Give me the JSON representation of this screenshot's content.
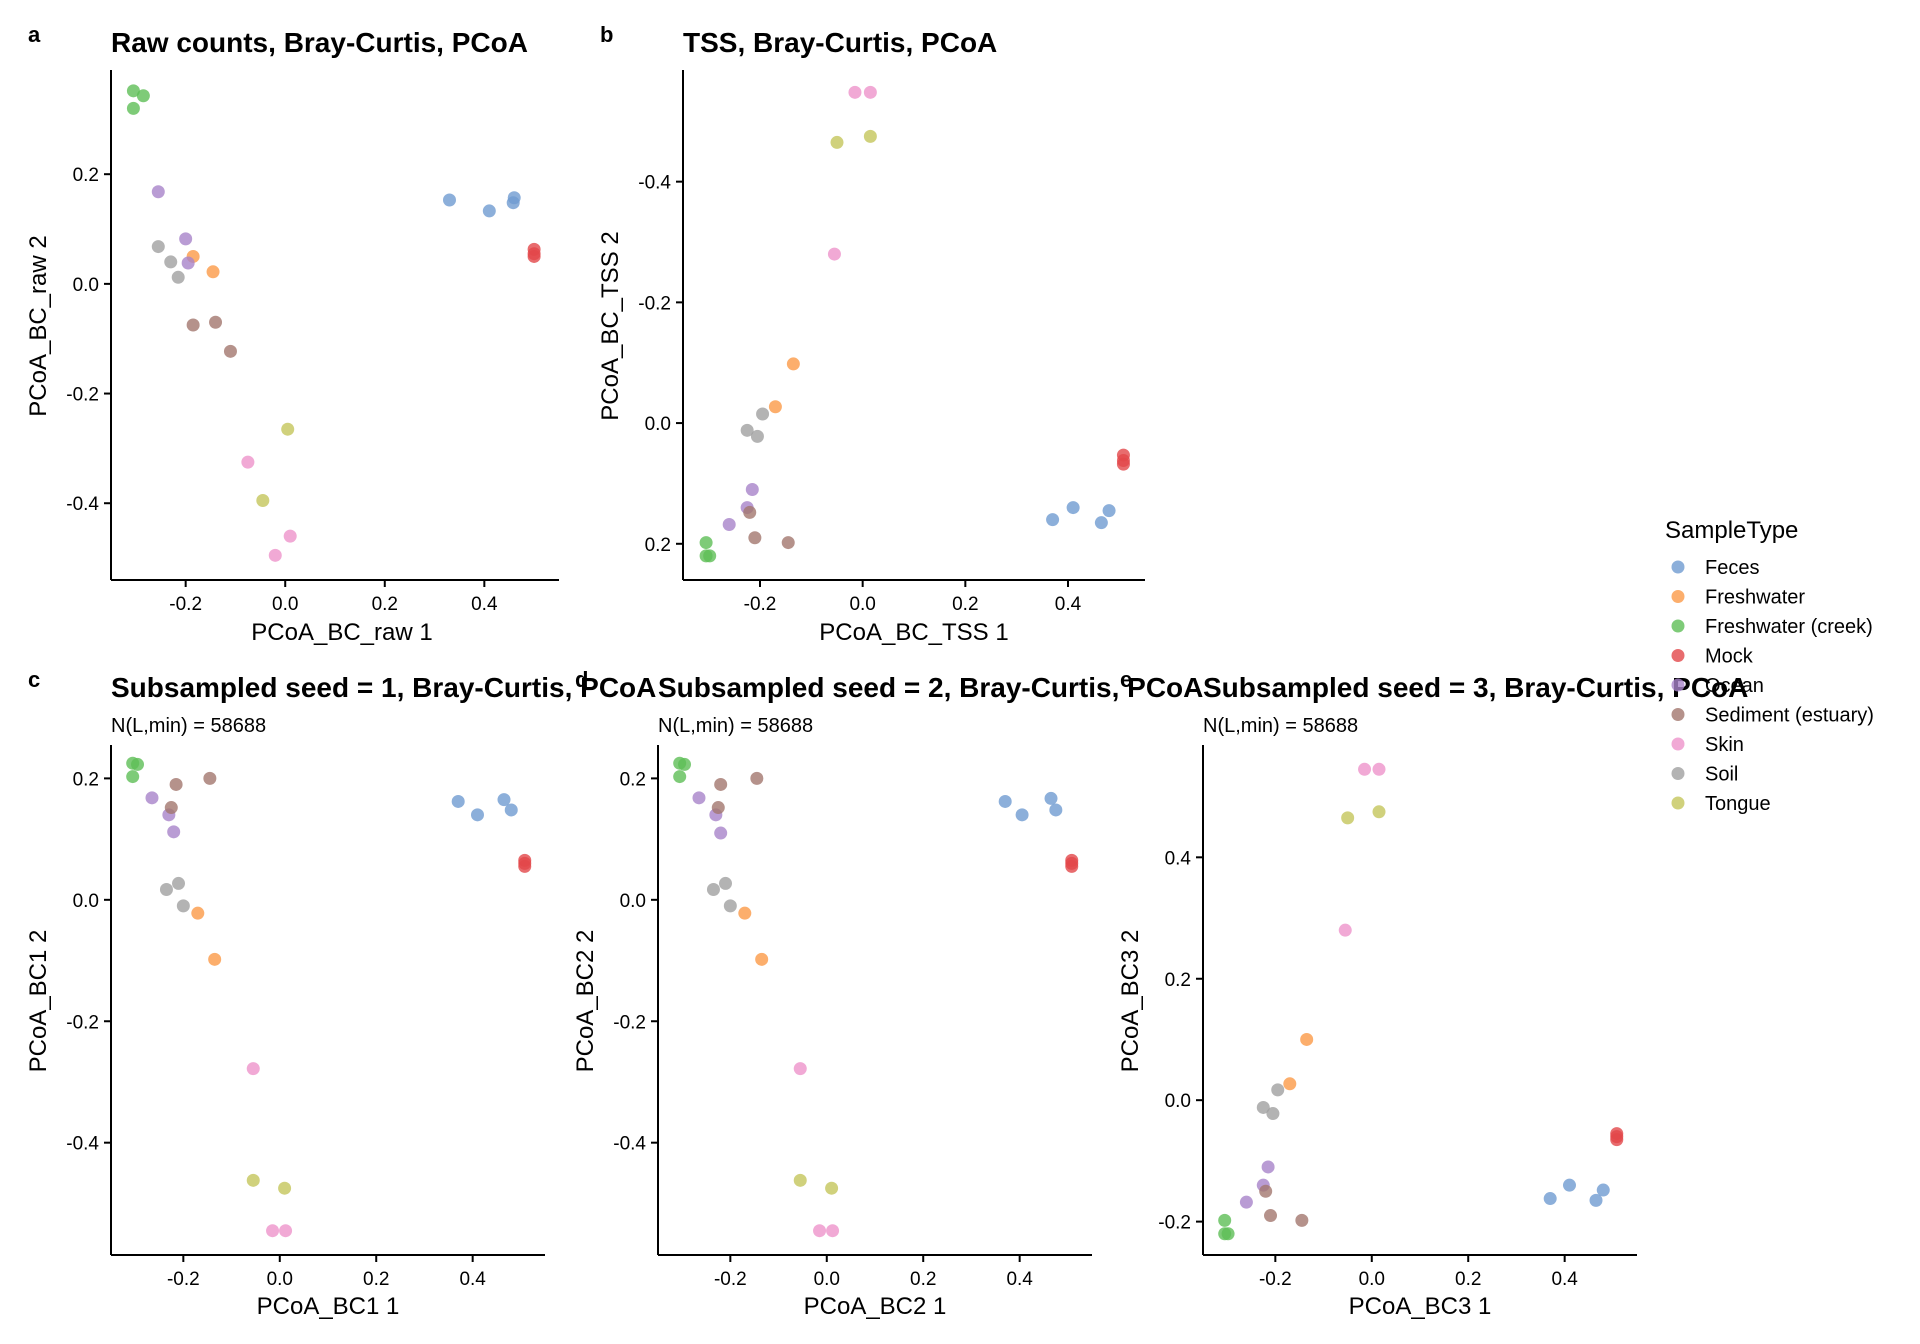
{
  "legend": {
    "title": "SampleType",
    "entries": [
      {
        "name": "Feces",
        "color": "#6F9BD1"
      },
      {
        "name": "Freshwater",
        "color": "#FB9A47"
      },
      {
        "name": "Freshwater (creek)",
        "color": "#5EBE56"
      },
      {
        "name": "Mock",
        "color": "#E2474A"
      },
      {
        "name": "Ocean",
        "color": "#A783C9"
      },
      {
        "name": "Sediment (estuary)",
        "color": "#A2776E"
      },
      {
        "name": "Skin",
        "color": "#EE93CB"
      },
      {
        "name": "Soil",
        "color": "#A0A0A0"
      },
      {
        "name": "Tongue",
        "color": "#C4C65B"
      }
    ]
  },
  "chart_data": [
    {
      "type": "scatter",
      "panel": "a",
      "title": "Raw counts, Bray-Curtis, PCoA",
      "subtitle": "",
      "xlabel": "PCoA_BC_raw 1",
      "ylabel": "PCoA_BC_raw 2",
      "xlim": [
        -0.35,
        0.55
      ],
      "ylim": [
        -0.54,
        0.39
      ],
      "y_reversed": false,
      "xticks": [
        -0.2,
        0.0,
        0.2,
        0.4
      ],
      "xtick_labels": [
        "-0.2",
        "0.0",
        "0.2",
        "0.4"
      ],
      "yticks": [
        0.2,
        0.0,
        -0.2,
        -0.4
      ],
      "ytick_labels": [
        "0.2",
        "0.0",
        "-0.2",
        "-0.4"
      ],
      "points": [
        {
          "group": "Feces",
          "x": 0.33,
          "y": 0.153
        },
        {
          "group": "Feces",
          "x": 0.41,
          "y": 0.133
        },
        {
          "group": "Feces",
          "x": 0.458,
          "y": 0.148
        },
        {
          "group": "Feces",
          "x": 0.46,
          "y": 0.157
        },
        {
          "group": "Freshwater",
          "x": -0.185,
          "y": 0.05
        },
        {
          "group": "Freshwater",
          "x": -0.145,
          "y": 0.022
        },
        {
          "group": "Freshwater (creek)",
          "x": -0.305,
          "y": 0.352
        },
        {
          "group": "Freshwater (creek)",
          "x": -0.285,
          "y": 0.343
        },
        {
          "group": "Freshwater (creek)",
          "x": -0.305,
          "y": 0.32
        },
        {
          "group": "Mock",
          "x": 0.5,
          "y": 0.063
        },
        {
          "group": "Mock",
          "x": 0.5,
          "y": 0.055
        },
        {
          "group": "Mock",
          "x": 0.5,
          "y": 0.05
        },
        {
          "group": "Ocean",
          "x": -0.255,
          "y": 0.168
        },
        {
          "group": "Ocean",
          "x": -0.2,
          "y": 0.082
        },
        {
          "group": "Ocean",
          "x": -0.195,
          "y": 0.038
        },
        {
          "group": "Sediment (estuary)",
          "x": -0.185,
          "y": -0.075
        },
        {
          "group": "Sediment (estuary)",
          "x": -0.14,
          "y": -0.07
        },
        {
          "group": "Sediment (estuary)",
          "x": -0.11,
          "y": -0.123
        },
        {
          "group": "Skin",
          "x": -0.075,
          "y": -0.325
        },
        {
          "group": "Skin",
          "x": 0.01,
          "y": -0.46
        },
        {
          "group": "Skin",
          "x": -0.02,
          "y": -0.495
        },
        {
          "group": "Soil",
          "x": -0.255,
          "y": 0.068
        },
        {
          "group": "Soil",
          "x": -0.23,
          "y": 0.04
        },
        {
          "group": "Soil",
          "x": -0.215,
          "y": 0.012
        },
        {
          "group": "Tongue",
          "x": 0.005,
          "y": -0.265
        },
        {
          "group": "Tongue",
          "x": -0.045,
          "y": -0.395
        }
      ]
    },
    {
      "type": "scatter",
      "panel": "b",
      "title": "TSS, Bray-Curtis, PCoA",
      "subtitle": "",
      "xlabel": "PCoA_BC_TSS 1",
      "ylabel": "PCoA_BC_TSS 2",
      "xlim": [
        -0.35,
        0.55
      ],
      "ylim": [
        0.26,
        -0.585
      ],
      "y_reversed": true,
      "xticks": [
        -0.2,
        0.0,
        0.2,
        0.4
      ],
      "xtick_labels": [
        "-0.2",
        "0.0",
        "0.2",
        "0.4"
      ],
      "yticks": [
        -0.4,
        -0.2,
        0.0,
        0.2
      ],
      "ytick_labels": [
        "-0.4",
        "-0.2",
        "0.0",
        "0.2"
      ],
      "points": [
        {
          "group": "Feces",
          "x": 0.37,
          "y": 0.16
        },
        {
          "group": "Feces",
          "x": 0.41,
          "y": 0.14
        },
        {
          "group": "Feces",
          "x": 0.465,
          "y": 0.165
        },
        {
          "group": "Feces",
          "x": 0.48,
          "y": 0.145
        },
        {
          "group": "Freshwater",
          "x": -0.17,
          "y": -0.027
        },
        {
          "group": "Freshwater",
          "x": -0.135,
          "y": -0.098
        },
        {
          "group": "Freshwater (creek)",
          "x": -0.305,
          "y": 0.198
        },
        {
          "group": "Freshwater (creek)",
          "x": -0.305,
          "y": 0.22
        },
        {
          "group": "Freshwater (creek)",
          "x": -0.298,
          "y": 0.22
        },
        {
          "group": "Mock",
          "x": 0.508,
          "y": 0.053
        },
        {
          "group": "Mock",
          "x": 0.508,
          "y": 0.062
        },
        {
          "group": "Mock",
          "x": 0.508,
          "y": 0.068
        },
        {
          "group": "Ocean",
          "x": -0.215,
          "y": 0.11
        },
        {
          "group": "Ocean",
          "x": -0.225,
          "y": 0.14
        },
        {
          "group": "Ocean",
          "x": -0.26,
          "y": 0.168
        },
        {
          "group": "Sediment (estuary)",
          "x": -0.22,
          "y": 0.148
        },
        {
          "group": "Sediment (estuary)",
          "x": -0.21,
          "y": 0.19
        },
        {
          "group": "Sediment (estuary)",
          "x": -0.145,
          "y": 0.198
        },
        {
          "group": "Skin",
          "x": -0.015,
          "y": -0.548
        },
        {
          "group": "Skin",
          "x": 0.015,
          "y": -0.548
        },
        {
          "group": "Skin",
          "x": -0.055,
          "y": -0.28
        },
        {
          "group": "Soil",
          "x": -0.195,
          "y": -0.015
        },
        {
          "group": "Soil",
          "x": -0.225,
          "y": 0.012
        },
        {
          "group": "Soil",
          "x": -0.205,
          "y": 0.022
        },
        {
          "group": "Tongue",
          "x": -0.05,
          "y": -0.465
        },
        {
          "group": "Tongue",
          "x": 0.015,
          "y": -0.475
        }
      ]
    },
    {
      "type": "scatter",
      "panel": "c",
      "title": "Subsampled seed = 1, Bray-Curtis, PCoA",
      "subtitle": "N(L,min) = 58688",
      "xlabel": "PCoA_BC1 1",
      "ylabel": "PCoA_BC1 2",
      "xlim": [
        -0.35,
        0.55
      ],
      "ylim": [
        -0.585,
        0.255
      ],
      "y_reversed": false,
      "xticks": [
        -0.2,
        0.0,
        0.2,
        0.4
      ],
      "xtick_labels": [
        "-0.2",
        "0.0",
        "0.2",
        "0.4"
      ],
      "yticks": [
        0.2,
        0.0,
        -0.2,
        -0.4
      ],
      "ytick_labels": [
        "0.2",
        "0.0",
        "-0.2",
        "-0.4"
      ],
      "points": [
        {
          "group": "Feces",
          "x": 0.37,
          "y": 0.162
        },
        {
          "group": "Feces",
          "x": 0.41,
          "y": 0.14
        },
        {
          "group": "Feces",
          "x": 0.465,
          "y": 0.165
        },
        {
          "group": "Feces",
          "x": 0.48,
          "y": 0.148
        },
        {
          "group": "Freshwater",
          "x": -0.17,
          "y": -0.022
        },
        {
          "group": "Freshwater",
          "x": -0.135,
          "y": -0.098
        },
        {
          "group": "Freshwater (creek)",
          "x": -0.305,
          "y": 0.225
        },
        {
          "group": "Freshwater (creek)",
          "x": -0.295,
          "y": 0.223
        },
        {
          "group": "Freshwater (creek)",
          "x": -0.305,
          "y": 0.203
        },
        {
          "group": "Mock",
          "x": 0.508,
          "y": 0.065
        },
        {
          "group": "Mock",
          "x": 0.508,
          "y": 0.06
        },
        {
          "group": "Mock",
          "x": 0.508,
          "y": 0.055
        },
        {
          "group": "Ocean",
          "x": -0.265,
          "y": 0.168
        },
        {
          "group": "Ocean",
          "x": -0.23,
          "y": 0.14
        },
        {
          "group": "Ocean",
          "x": -0.22,
          "y": 0.112
        },
        {
          "group": "Sediment (estuary)",
          "x": -0.215,
          "y": 0.19
        },
        {
          "group": "Sediment (estuary)",
          "x": -0.225,
          "y": 0.152
        },
        {
          "group": "Sediment (estuary)",
          "x": -0.145,
          "y": 0.2
        },
        {
          "group": "Skin",
          "x": -0.055,
          "y": -0.278
        },
        {
          "group": "Skin",
          "x": -0.015,
          "y": -0.545
        },
        {
          "group": "Skin",
          "x": 0.012,
          "y": -0.545
        },
        {
          "group": "Soil",
          "x": -0.235,
          "y": 0.017
        },
        {
          "group": "Soil",
          "x": -0.21,
          "y": 0.027
        },
        {
          "group": "Soil",
          "x": -0.2,
          "y": -0.01
        },
        {
          "group": "Tongue",
          "x": -0.055,
          "y": -0.462
        },
        {
          "group": "Tongue",
          "x": 0.01,
          "y": -0.475
        }
      ]
    },
    {
      "type": "scatter",
      "panel": "d",
      "title": "Subsampled seed = 2, Bray-Curtis, PCoA",
      "subtitle": "N(L,min) = 58688",
      "xlabel": "PCoA_BC2 1",
      "ylabel": "PCoA_BC2 2",
      "xlim": [
        -0.35,
        0.55
      ],
      "ylim": [
        -0.585,
        0.255
      ],
      "y_reversed": false,
      "xticks": [
        -0.2,
        0.0,
        0.2,
        0.4
      ],
      "xtick_labels": [
        "-0.2",
        "0.0",
        "0.2",
        "0.4"
      ],
      "yticks": [
        0.2,
        0.0,
        -0.2,
        -0.4
      ],
      "ytick_labels": [
        "0.2",
        "0.0",
        "-0.2",
        "-0.4"
      ],
      "points": [
        {
          "group": "Feces",
          "x": 0.37,
          "y": 0.162
        },
        {
          "group": "Feces",
          "x": 0.405,
          "y": 0.14
        },
        {
          "group": "Feces",
          "x": 0.465,
          "y": 0.167
        },
        {
          "group": "Feces",
          "x": 0.475,
          "y": 0.148
        },
        {
          "group": "Freshwater",
          "x": -0.17,
          "y": -0.022
        },
        {
          "group": "Freshwater",
          "x": -0.135,
          "y": -0.098
        },
        {
          "group": "Freshwater (creek)",
          "x": -0.305,
          "y": 0.225
        },
        {
          "group": "Freshwater (creek)",
          "x": -0.295,
          "y": 0.223
        },
        {
          "group": "Freshwater (creek)",
          "x": -0.305,
          "y": 0.203
        },
        {
          "group": "Mock",
          "x": 0.508,
          "y": 0.065
        },
        {
          "group": "Mock",
          "x": 0.508,
          "y": 0.06
        },
        {
          "group": "Mock",
          "x": 0.508,
          "y": 0.055
        },
        {
          "group": "Ocean",
          "x": -0.265,
          "y": 0.168
        },
        {
          "group": "Ocean",
          "x": -0.23,
          "y": 0.14
        },
        {
          "group": "Ocean",
          "x": -0.22,
          "y": 0.11
        },
        {
          "group": "Sediment (estuary)",
          "x": -0.22,
          "y": 0.19
        },
        {
          "group": "Sediment (estuary)",
          "x": -0.225,
          "y": 0.152
        },
        {
          "group": "Sediment (estuary)",
          "x": -0.145,
          "y": 0.2
        },
        {
          "group": "Skin",
          "x": -0.055,
          "y": -0.278
        },
        {
          "group": "Skin",
          "x": -0.015,
          "y": -0.545
        },
        {
          "group": "Skin",
          "x": 0.012,
          "y": -0.545
        },
        {
          "group": "Soil",
          "x": -0.235,
          "y": 0.017
        },
        {
          "group": "Soil",
          "x": -0.21,
          "y": 0.027
        },
        {
          "group": "Soil",
          "x": -0.2,
          "y": -0.01
        },
        {
          "group": "Tongue",
          "x": -0.055,
          "y": -0.462
        },
        {
          "group": "Tongue",
          "x": 0.01,
          "y": -0.475
        }
      ]
    },
    {
      "type": "scatter",
      "panel": "e",
      "title": "Subsampled seed = 3, Bray-Curtis, PCoA",
      "subtitle": "N(L,min) = 58688",
      "xlabel": "PCoA_BC3 1",
      "ylabel": "PCoA_BC3 2",
      "xlim": [
        -0.35,
        0.55
      ],
      "ylim": [
        -0.255,
        0.585
      ],
      "y_reversed": false,
      "xticks": [
        -0.2,
        0.0,
        0.2,
        0.4
      ],
      "xtick_labels": [
        "-0.2",
        "0.0",
        "0.2",
        "0.4"
      ],
      "yticks": [
        0.4,
        0.2,
        0.0,
        -0.2
      ],
      "ytick_labels": [
        "0.4",
        "0.2",
        "0.0",
        "-0.2"
      ],
      "points": [
        {
          "group": "Feces",
          "x": 0.37,
          "y": -0.162
        },
        {
          "group": "Feces",
          "x": 0.41,
          "y": -0.14
        },
        {
          "group": "Feces",
          "x": 0.465,
          "y": -0.165
        },
        {
          "group": "Feces",
          "x": 0.48,
          "y": -0.148
        },
        {
          "group": "Freshwater",
          "x": -0.17,
          "y": 0.027
        },
        {
          "group": "Freshwater",
          "x": -0.135,
          "y": 0.1
        },
        {
          "group": "Freshwater (creek)",
          "x": -0.305,
          "y": -0.198
        },
        {
          "group": "Freshwater (creek)",
          "x": -0.305,
          "y": -0.22
        },
        {
          "group": "Freshwater (creek)",
          "x": -0.298,
          "y": -0.22
        },
        {
          "group": "Mock",
          "x": 0.508,
          "y": -0.055
        },
        {
          "group": "Mock",
          "x": 0.508,
          "y": -0.06
        },
        {
          "group": "Mock",
          "x": 0.508,
          "y": -0.065
        },
        {
          "group": "Ocean",
          "x": -0.215,
          "y": -0.11
        },
        {
          "group": "Ocean",
          "x": -0.225,
          "y": -0.14
        },
        {
          "group": "Ocean",
          "x": -0.26,
          "y": -0.168
        },
        {
          "group": "Sediment (estuary)",
          "x": -0.22,
          "y": -0.15
        },
        {
          "group": "Sediment (estuary)",
          "x": -0.21,
          "y": -0.19
        },
        {
          "group": "Sediment (estuary)",
          "x": -0.145,
          "y": -0.198
        },
        {
          "group": "Skin",
          "x": -0.015,
          "y": 0.545
        },
        {
          "group": "Skin",
          "x": 0.015,
          "y": 0.545
        },
        {
          "group": "Skin",
          "x": -0.055,
          "y": 0.28
        },
        {
          "group": "Soil",
          "x": -0.195,
          "y": 0.017
        },
        {
          "group": "Soil",
          "x": -0.225,
          "y": -0.012
        },
        {
          "group": "Soil",
          "x": -0.205,
          "y": -0.022
        },
        {
          "group": "Tongue",
          "x": -0.05,
          "y": 0.465
        },
        {
          "group": "Tongue",
          "x": 0.015,
          "y": 0.475
        }
      ]
    }
  ]
}
